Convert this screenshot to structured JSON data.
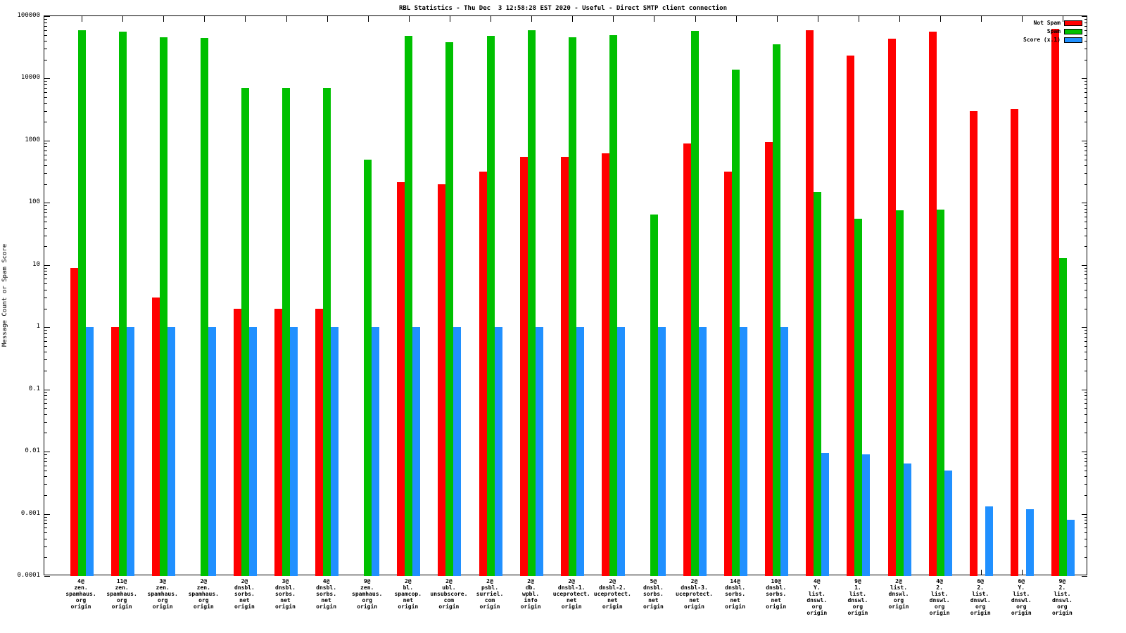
{
  "chart_data": {
    "type": "bar",
    "title": "RBL Statistics - Thu Dec  3 12:58:28 EST 2020 - Useful - Direct SMTP client connection",
    "ylabel": "Message Count or Spam Score",
    "yscale": "log",
    "ylim": [
      0.0001,
      100000
    ],
    "grid": false,
    "legend_position": "top-right",
    "yticks": [
      {
        "label": "100000",
        "value": 100000
      },
      {
        "label": "10000",
        "value": 10000
      },
      {
        "label": "1000",
        "value": 1000
      },
      {
        "label": "100",
        "value": 100
      },
      {
        "label": "10",
        "value": 10
      },
      {
        "label": "1",
        "value": 1
      },
      {
        "label": "0.1",
        "value": 0.1
      },
      {
        "label": "0.01",
        "value": 0.01
      },
      {
        "label": "0.001",
        "value": 0.001
      },
      {
        "label": "0.0001",
        "value": 0.0001
      }
    ],
    "categories": [
      "4@\nzen.\nspamhaus.\norg\norigin",
      "11@\nzen.\nspamhaus.\norg\norigin",
      "3@\nzen.\nspamhaus.\norg\norigin",
      "2@\nzen.\nspamhaus.\norg\norigin",
      "2@\ndnsbl.\nsorbs.\nnet\norigin",
      "3@\ndnsbl.\nsorbs.\nnet\norigin",
      "4@\ndnsbl.\nsorbs.\nnet\norigin",
      "9@\nzen.\nspamhaus.\norg\norigin",
      "2@\nbl.\nspamcop.\nnet\norigin",
      "2@\nubl.\nunsubscore.\ncom\norigin",
      "2@\npsbl.\nsurriel.\ncom\norigin",
      "2@\ndb.\nwpbl.\ninfo\norigin",
      "2@\ndnsbl-1.\nuceprotect.\nnet\norigin",
      "2@\ndnsbl-2.\nuceprotect.\nnet\norigin",
      "5@\ndnsbl.\nsorbs.\nnet\norigin",
      "2@\ndnsbl-3.\nuceprotect.\nnet\norigin",
      "14@\ndnsbl.\nsorbs.\nnet\norigin",
      "10@\ndnsbl.\nsorbs.\nnet\norigin",
      "4@\nY.\nlist.\ndnswl.\norg\norigin",
      "9@\n1.\nlist.\ndnswl.\norg\norigin",
      "2@\nlist.\ndnswl.\norg\norigin",
      "4@\n2.\nlist.\ndnswl.\norg\norigin",
      "6@\n2.\nlist.\ndnswl.\norg\norigin",
      "6@\nY.\nlist.\ndnswl.\norg\norigin",
      "9@\n2.\nlist.\ndnswl.\norg\norigin"
    ],
    "series": [
      {
        "name": "Not Spam",
        "color": "#ff0000",
        "values": [
          9,
          1,
          3,
          null,
          2,
          2,
          2,
          null,
          215,
          200,
          320,
          550,
          550,
          620,
          null,
          900,
          320,
          950,
          60000,
          23000,
          43000,
          57000,
          3000,
          3200,
          63000
        ]
      },
      {
        "name": "Spam",
        "color": "#00c000",
        "values": [
          60000,
          56000,
          46000,
          45000,
          7000,
          7000,
          7000,
          500,
          48000,
          38000,
          48000,
          59000,
          46000,
          50000,
          65,
          58000,
          14000,
          35000,
          150,
          56,
          76,
          78,
          null,
          null,
          13
        ]
      },
      {
        "name": "Score (x.1)",
        "color": "#2090ff",
        "values": [
          1,
          1,
          1,
          1,
          1,
          1,
          1,
          1,
          1,
          1,
          1,
          1,
          1,
          1,
          1,
          1,
          1,
          1,
          0.0095,
          0.009,
          0.0065,
          0.005,
          0.0013,
          0.0012,
          0.0008
        ]
      }
    ]
  }
}
